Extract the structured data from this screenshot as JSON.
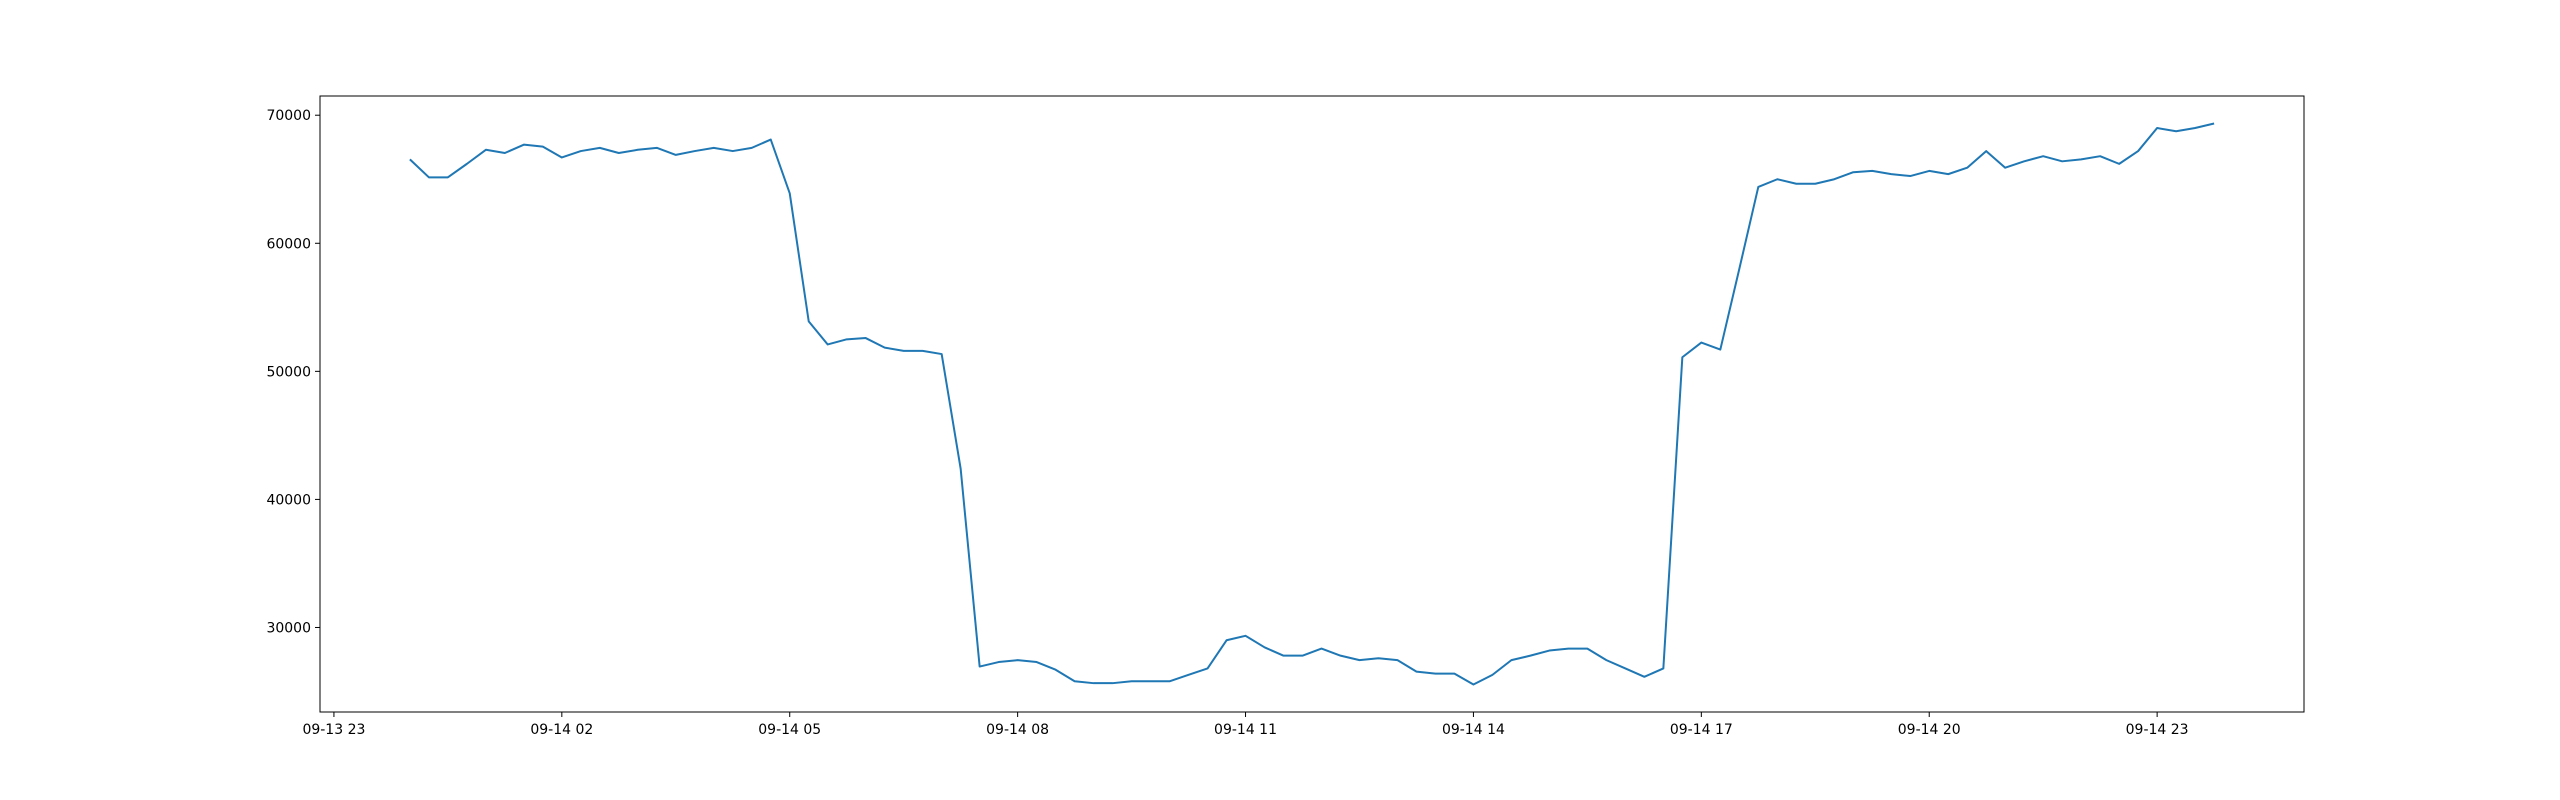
{
  "chart_data": {
    "type": "line",
    "x": [
      "09-14 00:00",
      "09-14 00:15",
      "09-14 00:30",
      "09-14 00:45",
      "09-14 01:00",
      "09-14 01:15",
      "09-14 01:30",
      "09-14 01:45",
      "09-14 02:00",
      "09-14 02:15",
      "09-14 02:30",
      "09-14 02:45",
      "09-14 03:00",
      "09-14 03:15",
      "09-14 03:30",
      "09-14 03:45",
      "09-14 04:00",
      "09-14 04:15",
      "09-14 04:30",
      "09-14 04:45",
      "09-14 05:00",
      "09-14 05:15",
      "09-14 05:30",
      "09-14 05:45",
      "09-14 06:00",
      "09-14 06:15",
      "09-14 06:30",
      "09-14 06:45",
      "09-14 07:00",
      "09-14 07:15",
      "09-14 07:30",
      "09-14 07:45",
      "09-14 08:00",
      "09-14 08:15",
      "09-14 08:30",
      "09-14 08:45",
      "09-14 09:00",
      "09-14 09:15",
      "09-14 09:30",
      "09-14 09:45",
      "09-14 10:00",
      "09-14 10:15",
      "09-14 10:30",
      "09-14 10:45",
      "09-14 11:00",
      "09-14 11:15",
      "09-14 11:30",
      "09-14 11:45",
      "09-14 12:00",
      "09-14 12:15",
      "09-14 12:30",
      "09-14 12:45",
      "09-14 13:00",
      "09-14 13:15",
      "09-14 13:30",
      "09-14 13:45",
      "09-14 14:00",
      "09-14 14:15",
      "09-14 14:30",
      "09-14 14:45",
      "09-14 15:00",
      "09-14 15:15",
      "09-14 15:30",
      "09-14 15:45",
      "09-14 16:00",
      "09-14 16:15",
      "09-14 16:30",
      "09-14 16:45",
      "09-14 17:00",
      "09-14 17:15",
      "09-14 17:30",
      "09-14 17:45",
      "09-14 18:00",
      "09-14 18:15",
      "09-14 18:30",
      "09-14 18:45",
      "09-14 19:00",
      "09-14 19:15",
      "09-14 19:30",
      "09-14 19:45",
      "09-14 20:00",
      "09-14 20:15",
      "09-14 20:30",
      "09-14 20:45",
      "09-14 21:00",
      "09-14 21:15",
      "09-14 21:30",
      "09-14 21:45",
      "09-14 22:00",
      "09-14 22:15",
      "09-14 22:30",
      "09-14 22:45",
      "09-14 23:00",
      "09-14 23:15",
      "09-14 23:30",
      "09-14 23:45"
    ],
    "series": [
      {
        "color": "#1f77b4",
        "values": [
          66550,
          65150,
          65150,
          66200,
          67300,
          67050,
          67700,
          67550,
          66700,
          67200,
          67450,
          67050,
          67300,
          67450,
          66900,
          67200,
          67450,
          67200,
          67450,
          68100,
          63900,
          53900,
          52100,
          52500,
          52600,
          51850,
          51600,
          51600,
          51350,
          42400,
          26950,
          27300,
          27450,
          27300,
          26700,
          25800,
          25650,
          25650,
          25800,
          25800,
          25800,
          26300,
          26800,
          29000,
          29350,
          28450,
          27800,
          27800,
          28350,
          27800,
          27450,
          27600,
          27450,
          26550,
          26400,
          26400,
          25550,
          26300,
          27450,
          27800,
          28200,
          28350,
          28350,
          27450,
          26800,
          26150,
          26800,
          51100,
          52250,
          51700,
          58000,
          64400,
          65000,
          64650,
          64650,
          65000,
          65550,
          65650,
          65400,
          65250,
          65650,
          65400,
          65900,
          67200,
          65900,
          66400,
          66800,
          66400,
          66550,
          66800,
          66200,
          67200,
          69000,
          68750,
          69000,
          69350
        ]
      }
    ],
    "xlim": [
      "09-13 22:49",
      "09-15 00:56"
    ],
    "xticks": [
      "09-13 23",
      "09-14 02",
      "09-14 05",
      "09-14 08",
      "09-14 11",
      "09-14 14",
      "09-14 17",
      "09-14 20",
      "09-14 23"
    ],
    "ylim": [
      23400,
      71500
    ],
    "yticks": [
      30000,
      40000,
      50000,
      60000,
      70000
    ]
  }
}
